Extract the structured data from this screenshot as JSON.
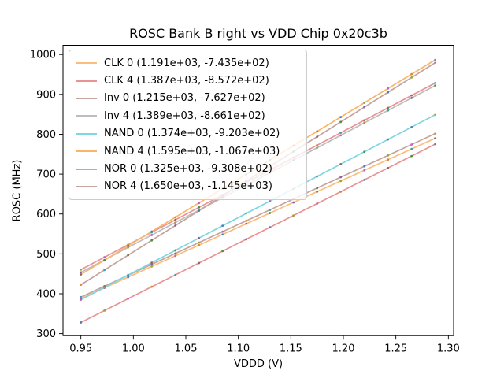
{
  "chart_data": {
    "type": "scatter",
    "title": "ROSC Bank B right vs VDD Chip 0x20c3b",
    "xlabel": "VDDD (V)",
    "ylabel": "ROSC (MHz)",
    "xlim": [
      0.933,
      1.305
    ],
    "ylim": [
      294.9,
      1023.1
    ],
    "xticks": {
      "values": [
        0.95,
        1.0,
        1.05,
        1.1,
        1.15,
        1.2,
        1.25,
        1.3
      ],
      "labels": [
        "0.95",
        "1.00",
        "1.05",
        "1.10",
        "1.15",
        "1.20",
        "1.25",
        "1.30"
      ]
    },
    "yticks": {
      "values": [
        300,
        400,
        500,
        600,
        700,
        800,
        900,
        1000
      ],
      "labels": [
        "300",
        "400",
        "500",
        "600",
        "700",
        "800",
        "900",
        "1000"
      ]
    },
    "grid": false,
    "legend_position": "upper left",
    "x": [
      0.95,
      0.9725,
      0.995,
      1.0175,
      1.04,
      1.0625,
      1.085,
      1.1075,
      1.13,
      1.1525,
      1.175,
      1.1975,
      1.22,
      1.2425,
      1.265,
      1.2875
    ],
    "series": [
      {
        "name": "CLK 0",
        "label": "CLK 0 (1.191e+03, -7.435e+02)",
        "slope": 1191,
        "intercept": -743.5,
        "line_color": "#fbbd7c",
        "values": [
          388.0,
          414.8,
          441.5,
          468.3,
          495.1,
          521.9,
          548.7,
          575.5,
          602.3,
          629.1,
          655.9,
          682.7,
          709.5,
          736.3,
          763.1,
          789.9
        ]
      },
      {
        "name": "CLK 4",
        "label": "CLK 4 (1.387e+03, -8.572e+02)",
        "slope": 1387,
        "intercept": -857.2,
        "line_color": "#e99395",
        "values": [
          460.5,
          491.7,
          522.9,
          554.1,
          585.3,
          616.5,
          647.7,
          678.9,
          710.1,
          741.3,
          772.5,
          803.7,
          834.9,
          866.1,
          897.4,
          928.6
        ]
      },
      {
        "name": "Inv 0",
        "label": "Inv 0 (1.215e+03, -7.627e+02)",
        "slope": 1215,
        "intercept": -762.7,
        "line_color": "#c4a49d",
        "values": [
          391.6,
          418.9,
          446.2,
          473.6,
          500.9,
          528.2,
          555.6,
          582.9,
          610.2,
          637.6,
          664.9,
          692.3,
          719.6,
          746.9,
          774.3,
          801.6
        ]
      },
      {
        "name": "Inv 4",
        "label": "Inv 4 (1.389e+03, -8.661e+02)",
        "slope": 1389,
        "intercept": -866.1,
        "line_color": "#bdbdbd",
        "values": [
          453.5,
          484.7,
          516.0,
          547.2,
          578.5,
          609.7,
          641.0,
          672.2,
          703.5,
          734.7,
          766.0,
          797.2,
          828.5,
          859.7,
          891.0,
          922.2
        ]
      },
      {
        "name": "NAND 0",
        "label": "NAND 0 (1.374e+03, -9.203e+02)",
        "slope": 1374,
        "intercept": -920.3,
        "line_color": "#7fd6e3",
        "values": [
          385.0,
          415.9,
          446.8,
          477.8,
          508.7,
          539.6,
          570.5,
          601.4,
          632.3,
          663.2,
          694.2,
          725.1,
          756.0,
          786.9,
          817.8,
          848.7
        ]
      },
      {
        "name": "NAND 4",
        "label": "NAND 4 (1.595e+03, -1.067e+03)",
        "slope": 1595,
        "intercept": -1067,
        "line_color": "#fcb469",
        "values": [
          448.3,
          484.1,
          520.0,
          555.9,
          591.8,
          627.7,
          663.6,
          699.5,
          735.4,
          771.2,
          807.1,
          843.0,
          878.9,
          914.8,
          950.7,
          986.6
        ]
      },
      {
        "name": "NOR 0",
        "label": "NOR 0 (1.325e+03, -9.308e+02)",
        "slope": 1325,
        "intercept": -930.8,
        "line_color": "#e99395",
        "values": [
          328.0,
          357.8,
          387.6,
          417.4,
          447.2,
          477.0,
          506.8,
          536.6,
          566.5,
          596.3,
          626.1,
          655.9,
          685.7,
          715.5,
          745.3,
          775.1
        ]
      },
      {
        "name": "NOR 4",
        "label": "NOR 4 (1.650e+03, -1.145e+03)",
        "slope": 1650,
        "intercept": -1145,
        "line_color": "#c4a49d",
        "values": [
          422.5,
          459.6,
          496.8,
          533.9,
          571.0,
          608.1,
          645.3,
          682.4,
          719.5,
          756.6,
          793.8,
          830.9,
          868.0,
          905.1,
          942.3,
          979.4
        ]
      }
    ],
    "marker_palette": [
      "#4a8f44",
      "#8a5fae",
      "#4b7db8",
      "#9fa42c",
      "#c95fbb",
      "#d9833b",
      "#3f9fae",
      "#8a6a5a"
    ],
    "colors": {
      "spine": "#000000",
      "tick": "#000000",
      "text": "#000000",
      "legend_border": "#cccccc"
    }
  }
}
